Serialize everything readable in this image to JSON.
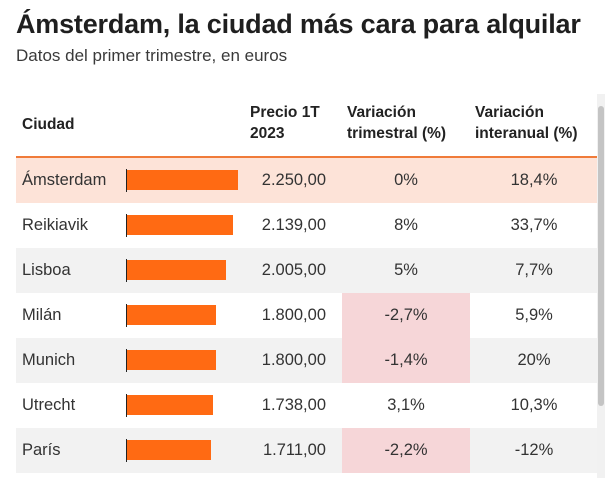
{
  "title": "Ámsterdam, la ciudad más cara para alquilar",
  "subtitle": "Datos del primer trimestre, en euros",
  "headers": {
    "city": "Ciudad",
    "price": "Precio 1T 2023",
    "quarterly": "Variación trimestral (%)",
    "yearly": "Variación interanual (%)"
  },
  "colors": {
    "bar": "#ff6a13",
    "header_rule": "#f07b3a",
    "highlight_row": "#fde3d8",
    "negative_cell": "#f6d6d8"
  },
  "chart_data": {
    "type": "table",
    "title": "Ámsterdam, la ciudad más cara para alquilar",
    "subtitle": "Datos del primer trimestre, en euros",
    "bar_max": 2250,
    "columns": [
      "Ciudad",
      "Precio 1T 2023",
      "Variación trimestral (%)",
      "Variación interanual (%)"
    ],
    "rows": [
      {
        "city": "Ámsterdam",
        "price": 2250.0,
        "price_label": "2.250,00",
        "quarterly": "0%",
        "yearly": "18,4%",
        "highlight": true,
        "q_negative": false
      },
      {
        "city": "Reikiavik",
        "price": 2139.0,
        "price_label": "2.139,00",
        "quarterly": "8%",
        "yearly": "33,7%",
        "highlight": false,
        "q_negative": false
      },
      {
        "city": "Lisboa",
        "price": 2005.0,
        "price_label": "2.005,00",
        "quarterly": "5%",
        "yearly": "7,7%",
        "highlight": false,
        "q_negative": false
      },
      {
        "city": "Milán",
        "price": 1800.0,
        "price_label": "1.800,00",
        "quarterly": "-2,7%",
        "yearly": "5,9%",
        "highlight": false,
        "q_negative": true
      },
      {
        "city": "Munich",
        "price": 1800.0,
        "price_label": "1.800,00",
        "quarterly": "-1,4%",
        "yearly": "20%",
        "highlight": false,
        "q_negative": true
      },
      {
        "city": "Utrecht",
        "price": 1738.0,
        "price_label": "1.738,00",
        "quarterly": "3,1%",
        "yearly": "10,3%",
        "highlight": false,
        "q_negative": false
      },
      {
        "city": "París",
        "price": 1711.0,
        "price_label": "1.711,00",
        "quarterly": "-2,2%",
        "yearly": "-12%",
        "highlight": false,
        "q_negative": true
      }
    ]
  }
}
